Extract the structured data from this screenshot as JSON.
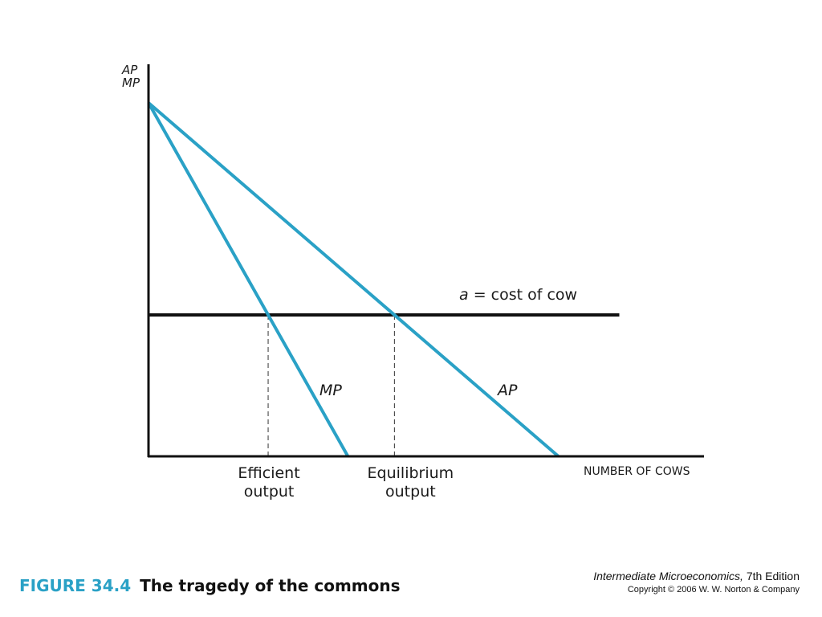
{
  "chart_data": {
    "type": "line",
    "title": "",
    "y_axis_label_lines": [
      "AP",
      "MP"
    ],
    "x_axis_label": "NUMBER OF COWS",
    "xlim": [
      0,
      100
    ],
    "ylim": [
      0,
      100
    ],
    "grid": false,
    "series": [
      {
        "name": "MP",
        "points": [
          [
            0,
            100
          ],
          [
            36,
            0
          ]
        ],
        "color": "#2aa1c6"
      },
      {
        "name": "AP",
        "points": [
          [
            0,
            100
          ],
          [
            74,
            0
          ]
        ],
        "color": "#2aa1c6"
      }
    ],
    "horizontal_lines": [
      {
        "label_italic": "a",
        "label_rest": " = cost of cow",
        "y": 40,
        "x_end": 85,
        "color": "#111111"
      }
    ],
    "reference_lines": [
      {
        "x": 21,
        "label_lines": [
          "Efficient",
          "output"
        ]
      },
      {
        "x": 44,
        "label_lines": [
          "Equilibrium",
          "output"
        ]
      }
    ]
  },
  "caption": {
    "figure_number": "FIGURE 34.4",
    "figure_title": "The tragedy of the commons"
  },
  "credit": {
    "book_title": "Intermediate Microeconomics,",
    "edition": " 7th Edition",
    "copyright": "Copyright © 2006 W. W. Norton & Company"
  },
  "colors": {
    "curve": "#2aa1c6",
    "axis": "#111111",
    "figure_label": "#2aa1c6"
  }
}
